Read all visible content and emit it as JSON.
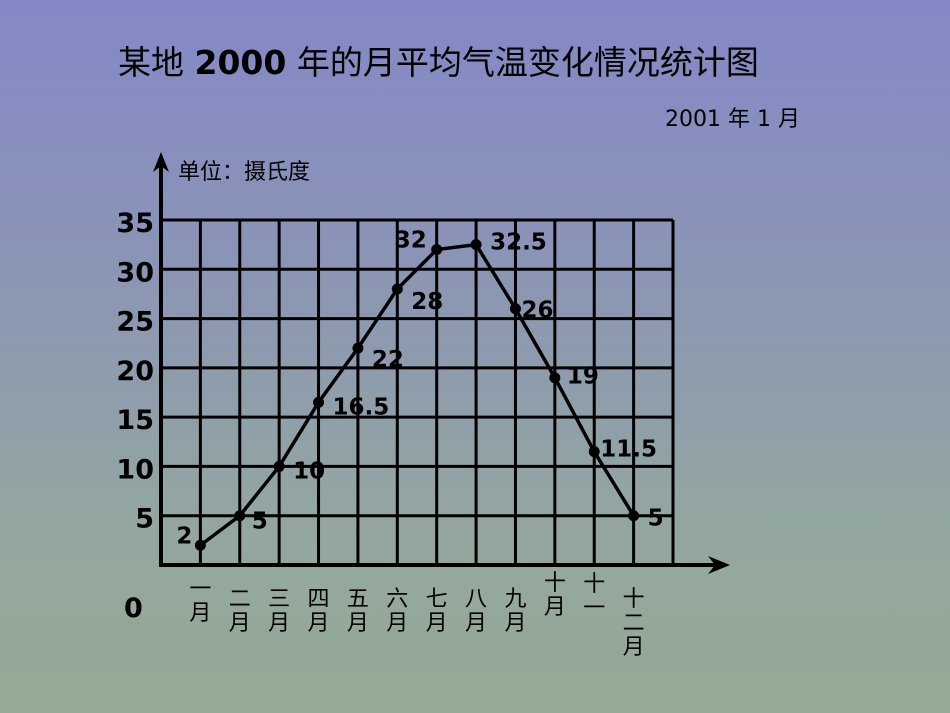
{
  "header": {
    "title_prefix": "某地",
    "title_year": "2000",
    "title_suffix": "年的月平均气温变化情况统计图",
    "date": "2001 年 1 月"
  },
  "axis": {
    "unit_label": "单位：摄氏度",
    "origin_label": "0"
  },
  "chart_data": {
    "type": "line",
    "title": "某地2000年的月平均气温变化情况统计图",
    "subtitle": "2001年1月",
    "xlabel": "",
    "ylabel": "单位：摄氏度",
    "ylim": [
      0,
      35
    ],
    "yticks": [
      5,
      10,
      15,
      20,
      25,
      30,
      35
    ],
    "grid": true,
    "categories": [
      "一月",
      "二月",
      "三月",
      "四月",
      "五月",
      "六月",
      "七月",
      "八月",
      "九月",
      "十月",
      "十一月",
      "十二月"
    ],
    "series": [
      {
        "name": "月平均气温",
        "values": [
          2,
          5,
          10,
          16.5,
          22,
          28,
          32,
          32.5,
          26,
          19,
          11.5,
          5
        ],
        "labels": [
          "2",
          "5",
          "10",
          "16.5",
          "22",
          "28",
          "32",
          "32.5",
          "26",
          "19",
          "11.5",
          "5"
        ]
      }
    ]
  },
  "x_labels_display": [
    [
      "一",
      "月"
    ],
    [
      "二",
      "月"
    ],
    [
      "三",
      "月"
    ],
    [
      "四",
      "月"
    ],
    [
      "五",
      "月"
    ],
    [
      "六",
      "月"
    ],
    [
      "七",
      "月"
    ],
    [
      "八",
      "月"
    ],
    [
      "九",
      "月"
    ],
    [
      "十",
      "月"
    ],
    [
      "十",
      "一"
    ],
    [
      "十",
      "二",
      "月"
    ]
  ]
}
